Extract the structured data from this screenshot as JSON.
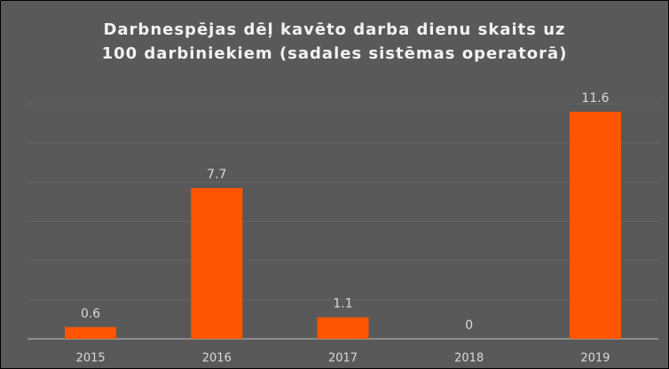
{
  "chart_data": {
    "type": "bar",
    "title": [
      "Darbnespējas dēļ kavēto darba dienu skaits uz",
      "100 darbiniekiem (sadales sistēmas operatorā)"
    ],
    "categories": [
      "2015",
      "2016",
      "2017",
      "2018",
      "2019"
    ],
    "values": [
      0.6,
      7.7,
      1.1,
      0,
      11.6
    ],
    "color": "#ff5500",
    "ylim": [
      0,
      13
    ],
    "yticks": [
      0,
      2,
      4,
      6,
      8,
      10,
      12
    ],
    "grid": true
  }
}
